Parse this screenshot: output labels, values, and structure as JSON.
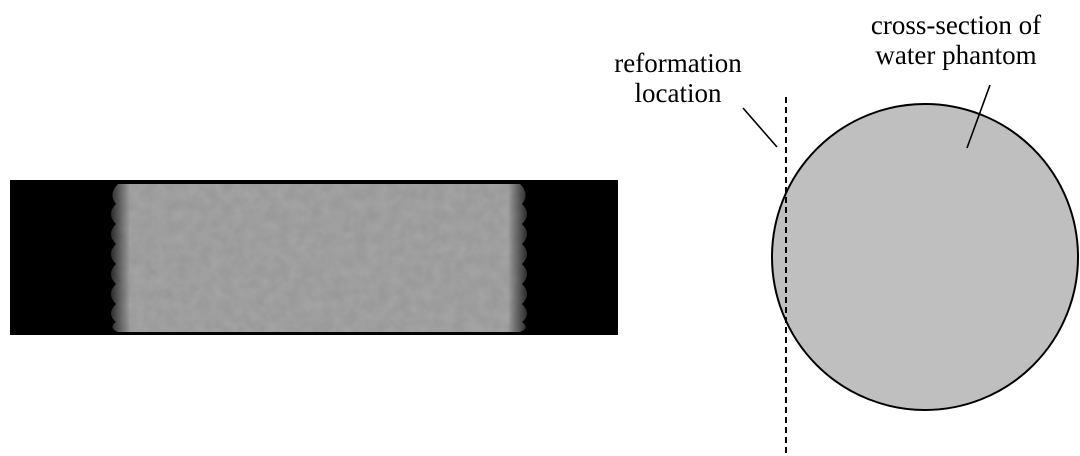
{
  "labels": {
    "reformation_line1": "reformation",
    "reformation_line2": "location",
    "phantom_line1": "cross-section of",
    "phantom_line2": "water phantom"
  },
  "colors": {
    "background": "#ffffff",
    "image_background": "#000000",
    "phantom_fill": "#bfbfbf",
    "outline": "#000000"
  }
}
